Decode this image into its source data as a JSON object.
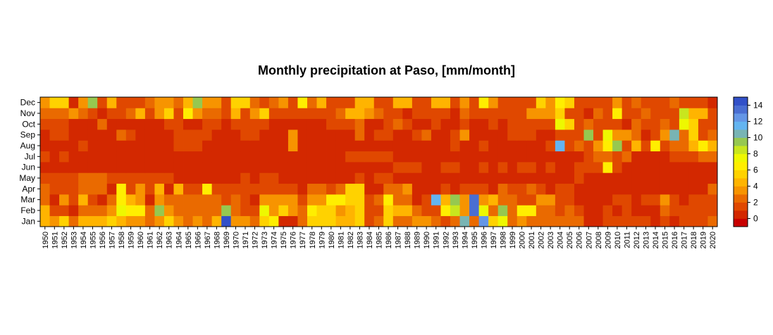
{
  "chart_data": {
    "type": "heatmap",
    "title": "Monthly precipitation at Paso, [mm/month]",
    "xlabel": "",
    "ylabel": "",
    "years": [
      "1950",
      "1951",
      "1952",
      "1953",
      "1954",
      "1955",
      "1956",
      "1957",
      "1958",
      "1959",
      "1960",
      "1961",
      "1962",
      "1963",
      "1964",
      "1965",
      "1966",
      "1967",
      "1968",
      "1969",
      "1970",
      "1971",
      "1972",
      "1973",
      "1974",
      "1975",
      "1976",
      "1977",
      "1978",
      "1979",
      "1980",
      "1981",
      "1982",
      "1983",
      "1984",
      "1985",
      "1986",
      "1987",
      "1988",
      "1989",
      "1990",
      "1991",
      "1992",
      "1993",
      "1994",
      "1995",
      "1996",
      "1997",
      "1998",
      "1999",
      "2000",
      "2001",
      "2002",
      "2003",
      "2004",
      "2005",
      "2006",
      "2007",
      "2008",
      "2009",
      "2010",
      "2011",
      "2012",
      "2013",
      "2014",
      "2015",
      "2016",
      "2017",
      "2018",
      "2019",
      "2020"
    ],
    "months": [
      "Jan",
      "Feb",
      "Mar",
      "Apr",
      "May",
      "Jun",
      "Jul",
      "Aug",
      "Sep",
      "Oct",
      "Nov",
      "Dec"
    ],
    "colorbar": {
      "range": [
        -1,
        15
      ],
      "ticks": [
        0,
        2,
        4,
        6,
        8,
        10,
        12,
        14
      ],
      "tick_labels": [
        "0",
        "2",
        "4",
        "6",
        "8",
        "10",
        "12",
        "14"
      ],
      "colors": [
        "#c80000",
        "#d32800",
        "#e04800",
        "#ea6a00",
        "#f79400",
        "#ffb400",
        "#ffd200",
        "#ffee00",
        "#eef800",
        "#c8e61e",
        "#96c850",
        "#78b4b4",
        "#64b4f0",
        "#6496e6",
        "#4a6ed2",
        "#3250c8"
      ]
    },
    "values": {
      "Jan": [
        4,
        3,
        5,
        2,
        4,
        4,
        4,
        5,
        4,
        3,
        3,
        2,
        3,
        5,
        3,
        2,
        3,
        2,
        4,
        15,
        3,
        3,
        2,
        5,
        6,
        0,
        0,
        2,
        5,
        5,
        5,
        4,
        4,
        5,
        1,
        2,
        5,
        2,
        2,
        3,
        3,
        2,
        1,
        2,
        10,
        2,
        12,
        5,
        7,
        2,
        3,
        2,
        2,
        2,
        2,
        2,
        2,
        0,
        0,
        1,
        1,
        1,
        1,
        1,
        0,
        1,
        0,
        1,
        1,
        1,
        2
      ],
      "Feb": [
        4,
        1,
        1,
        0,
        2,
        2,
        2,
        3,
        7,
        6,
        6,
        2,
        9,
        3,
        2,
        2,
        2,
        2,
        2,
        9,
        2,
        1,
        1,
        7,
        3,
        5,
        3,
        2,
        6,
        5,
        5,
        3,
        4,
        5,
        1,
        1,
        5,
        4,
        4,
        2,
        1,
        1,
        6,
        8,
        3,
        13,
        7,
        2,
        9,
        2,
        6,
        6,
        2,
        2,
        1,
        2,
        1,
        0,
        0,
        1,
        0,
        1,
        0,
        0,
        0,
        2,
        1,
        1,
        1,
        1,
        1
      ],
      "Mar": [
        2,
        0,
        3,
        1,
        4,
        1,
        0,
        2,
        6,
        4,
        3,
        0,
        3,
        2,
        2,
        2,
        2,
        2,
        2,
        1,
        2,
        1,
        0,
        3,
        3,
        3,
        3,
        1,
        3,
        3,
        6,
        6,
        5,
        5,
        1,
        2,
        6,
        2,
        2,
        0,
        1,
        11,
        4,
        9,
        3,
        13,
        3,
        4,
        2,
        2,
        1,
        1,
        3,
        3,
        1,
        1,
        0,
        0,
        0,
        0,
        1,
        1,
        0,
        1,
        1,
        3,
        1,
        0,
        1,
        1,
        1
      ],
      "Apr": [
        2,
        1,
        1,
        1,
        2,
        2,
        2,
        0,
        6,
        1,
        3,
        1,
        4,
        0,
        4,
        1,
        1,
        6,
        1,
        1,
        1,
        1,
        1,
        1,
        1,
        1,
        1,
        0,
        2,
        2,
        1,
        2,
        5,
        5,
        0,
        0,
        2,
        2,
        3,
        0,
        0,
        0,
        1,
        0,
        1,
        1,
        1,
        0,
        2,
        1,
        1,
        2,
        1,
        0,
        1,
        1,
        0,
        0,
        0,
        0,
        0,
        0,
        0,
        0,
        0,
        0,
        0,
        0,
        0,
        0,
        2
      ],
      "May": [
        1,
        1,
        1,
        1,
        2,
        2,
        2,
        1,
        1,
        1,
        1,
        1,
        1,
        1,
        0,
        0,
        0,
        0,
        0,
        0,
        0,
        1,
        0,
        1,
        1,
        0,
        0,
        0,
        0,
        0,
        0,
        0,
        0,
        1,
        0,
        1,
        1,
        0,
        0,
        0,
        0,
        0,
        0,
        0,
        0,
        0,
        0,
        0,
        0,
        0,
        0,
        0,
        0,
        0,
        0,
        0,
        1,
        0,
        0,
        0,
        0,
        0,
        0,
        0,
        0,
        0,
        0,
        0,
        0,
        0,
        0
      ],
      "Jun": [
        0,
        0,
        0,
        0,
        0,
        0,
        0,
        0,
        0,
        0,
        0,
        0,
        0,
        0,
        0,
        0,
        0,
        0,
        0,
        0,
        0,
        0,
        0,
        0,
        0,
        0,
        0,
        0,
        0,
        0,
        0,
        0,
        0,
        0,
        0,
        0,
        0,
        1,
        1,
        1,
        0,
        0,
        1,
        1,
        0,
        0,
        1,
        0,
        1,
        0,
        1,
        1,
        0,
        1,
        0,
        0,
        1,
        1,
        1,
        6,
        1,
        0,
        0,
        0,
        0,
        0,
        0,
        0,
        0,
        0,
        0
      ],
      "Jul": [
        1,
        0,
        1,
        0,
        0,
        0,
        0,
        0,
        0,
        0,
        0,
        0,
        0,
        0,
        0,
        0,
        0,
        0,
        0,
        0,
        0,
        0,
        0,
        0,
        0,
        0,
        0,
        0,
        0,
        0,
        0,
        0,
        1,
        1,
        1,
        1,
        1,
        0,
        0,
        0,
        0,
        0,
        0,
        0,
        0,
        0,
        0,
        0,
        0,
        0,
        0,
        0,
        0,
        0,
        0,
        0,
        0,
        1,
        2,
        2,
        1,
        2,
        0,
        0,
        0,
        0,
        1,
        1,
        1,
        2,
        2
      ],
      "Aug": [
        0,
        0,
        0,
        0,
        1,
        0,
        0,
        0,
        0,
        0,
        0,
        0,
        0,
        0,
        1,
        1,
        1,
        0,
        0,
        0,
        0,
        0,
        0,
        0,
        0,
        0,
        3,
        0,
        0,
        0,
        0,
        0,
        0,
        0,
        0,
        0,
        0,
        0,
        0,
        0,
        0,
        0,
        0,
        1,
        0,
        0,
        1,
        0,
        0,
        0,
        0,
        0,
        0,
        1,
        11,
        1,
        2,
        1,
        3,
        6,
        9,
        1,
        4,
        1,
        6,
        1,
        2,
        2,
        4,
        6,
        4
      ],
      "Sep": [
        0,
        1,
        1,
        0,
        0,
        0,
        0,
        0,
        2,
        1,
        0,
        0,
        0,
        0,
        1,
        1,
        1,
        1,
        0,
        0,
        0,
        1,
        1,
        0,
        0,
        0,
        3,
        0,
        0,
        0,
        0,
        0,
        0,
        2,
        0,
        1,
        1,
        0,
        0,
        1,
        2,
        0,
        0,
        1,
        3,
        0,
        0,
        0,
        0,
        1,
        1,
        1,
        0,
        0,
        1,
        1,
        1,
        9,
        1,
        7,
        3,
        3,
        2,
        0,
        1,
        3,
        10,
        2,
        5,
        1,
        2
      ],
      "Oct": [
        1,
        1,
        1,
        0,
        0,
        0,
        2,
        0,
        0,
        0,
        0,
        0,
        0,
        1,
        1,
        0,
        0,
        1,
        1,
        0,
        1,
        1,
        1,
        1,
        0,
        0,
        0,
        0,
        0,
        0,
        1,
        1,
        1,
        2,
        0,
        0,
        1,
        2,
        1,
        0,
        0,
        1,
        0,
        0,
        1,
        0,
        0,
        1,
        0,
        1,
        1,
        1,
        1,
        1,
        7,
        5,
        1,
        2,
        1,
        1,
        1,
        0,
        2,
        1,
        1,
        2,
        1,
        7,
        5,
        1,
        1
      ],
      "Nov": [
        2,
        2,
        2,
        3,
        2,
        1,
        0,
        1,
        1,
        2,
        4,
        1,
        3,
        5,
        1,
        6,
        3,
        2,
        2,
        1,
        4,
        1,
        3,
        5,
        1,
        1,
        1,
        1,
        1,
        1,
        1,
        2,
        4,
        4,
        3,
        2,
        1,
        1,
        0,
        1,
        1,
        1,
        1,
        0,
        2,
        1,
        1,
        1,
        1,
        1,
        1,
        3,
        3,
        3,
        5,
        1,
        1,
        0,
        2,
        1,
        6,
        1,
        1,
        2,
        1,
        1,
        1,
        8,
        4,
        4,
        1
      ],
      "Dec": [
        3,
        5,
        5,
        0,
        3,
        9,
        1,
        4,
        1,
        1,
        1,
        2,
        3,
        3,
        2,
        4,
        9,
        3,
        3,
        1,
        5,
        5,
        2,
        1,
        2,
        3,
        1,
        6,
        2,
        4,
        1,
        1,
        1,
        4,
        4,
        1,
        1,
        4,
        4,
        1,
        1,
        4,
        4,
        1,
        3,
        1,
        6,
        3,
        1,
        1,
        1,
        1,
        5,
        3,
        6,
        5,
        1,
        1,
        1,
        1,
        3,
        1,
        2,
        1,
        1,
        1,
        2,
        1,
        1,
        1,
        0
      ]
    }
  }
}
